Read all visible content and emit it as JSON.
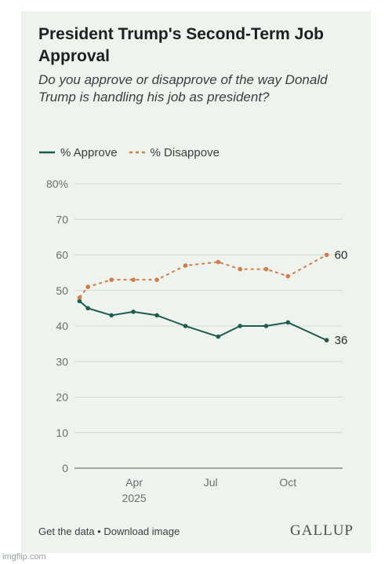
{
  "header": {
    "title": "President Trump's Second-Term Job Approval",
    "subtitle": "Do you approve or disapprove of the way Donald Trump is handling his job as president?"
  },
  "legend": [
    {
      "label": "% Approve",
      "color": "#1d5c52",
      "dash": false
    },
    {
      "label": "% Disappove",
      "color": "#d27c4b",
      "dash": true
    }
  ],
  "chart_data": {
    "type": "line",
    "ylim": [
      0,
      80
    ],
    "yticks": [
      "0",
      "10",
      "20",
      "30",
      "40",
      "50",
      "60",
      "70",
      "80%"
    ],
    "xlim": [
      "2025-01-20",
      "2025-12-05"
    ],
    "xticks": [
      {
        "date": "2025-04-01",
        "label": "Apr",
        "sublabel": "2025"
      },
      {
        "date": "2025-07-01",
        "label": "Jul",
        "sublabel": ""
      },
      {
        "date": "2025-10-01",
        "label": "Oct",
        "sublabel": ""
      }
    ],
    "x": [
      "2025-01-26",
      "2025-02-05",
      "2025-03-05",
      "2025-03-31",
      "2025-04-28",
      "2025-06-01",
      "2025-07-10",
      "2025-08-05",
      "2025-09-05",
      "2025-10-01",
      "2025-11-16"
    ],
    "series": [
      {
        "name": "% Approve",
        "color": "#1d5c52",
        "dash": false,
        "values": [
          47,
          45,
          43,
          44,
          43,
          40,
          37,
          40,
          40,
          41,
          36
        ],
        "end_label": "36"
      },
      {
        "name": "% Disappove",
        "color": "#d27c4b",
        "dash": true,
        "values": [
          48,
          51,
          53,
          53,
          53,
          57,
          58,
          56,
          56,
          54,
          60
        ],
        "end_label": "60"
      }
    ],
    "grid": true
  },
  "footer": {
    "get_data": "Get the data",
    "separator": " • ",
    "download": "Download image",
    "logo": "GALLUP"
  },
  "watermark": "imgflip.com"
}
